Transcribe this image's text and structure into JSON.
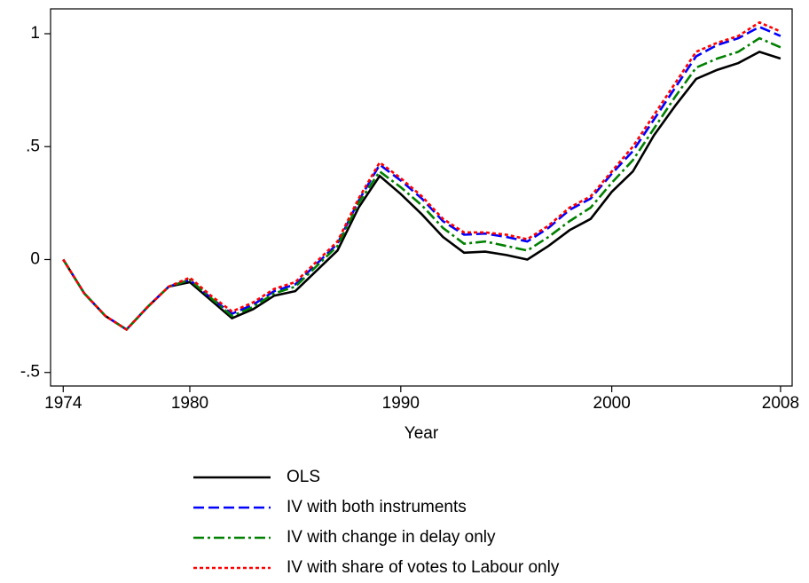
{
  "chart_data": {
    "type": "line",
    "x_label": "Year",
    "x": [
      1974,
      1975,
      1976,
      1977,
      1978,
      1979,
      1980,
      1981,
      1982,
      1983,
      1984,
      1985,
      1986,
      1987,
      1988,
      1989,
      1990,
      1991,
      1992,
      1993,
      1994,
      1995,
      1996,
      1997,
      1998,
      1999,
      2000,
      2001,
      2002,
      2003,
      2004,
      2005,
      2006,
      2007,
      2008
    ],
    "xlim": [
      1973.4,
      2008.55
    ],
    "xticks": [
      1974,
      1980,
      1990,
      2000,
      2008
    ],
    "ylim": [
      -0.56,
      1.11
    ],
    "yticks": [
      {
        "value": -0.5,
        "label": "-.5"
      },
      0,
      {
        "value": 0.5,
        "label": ".5"
      },
      1
    ],
    "grid": false,
    "legend_position": "bottom",
    "series": [
      {
        "name": "OLS",
        "color": "#000000",
        "dash": "solid",
        "values": [
          0,
          -0.15,
          -0.25,
          -0.31,
          -0.21,
          -0.12,
          -0.1,
          -0.18,
          -0.26,
          -0.22,
          -0.16,
          -0.14,
          -0.05,
          0.04,
          0.23,
          0.37,
          0.29,
          0.2,
          0.1,
          0.03,
          0.035,
          0.02,
          0.0,
          0.06,
          0.13,
          0.18,
          0.3,
          0.39,
          0.55,
          0.68,
          0.8,
          0.84,
          0.87,
          0.92,
          0.89
        ]
      },
      {
        "name": "IV with both instruments",
        "color": "#0000ff",
        "dash": "dashed",
        "values": [
          0,
          -0.15,
          -0.25,
          -0.31,
          -0.21,
          -0.12,
          -0.09,
          -0.17,
          -0.24,
          -0.2,
          -0.14,
          -0.11,
          -0.02,
          0.07,
          0.26,
          0.42,
          0.35,
          0.27,
          0.17,
          0.11,
          0.115,
          0.1,
          0.08,
          0.14,
          0.22,
          0.27,
          0.38,
          0.48,
          0.62,
          0.76,
          0.9,
          0.95,
          0.98,
          1.03,
          0.99
        ]
      },
      {
        "name": "IV with change in delay only",
        "color": "#008000",
        "dash": "dashdot",
        "values": [
          0,
          -0.15,
          -0.25,
          -0.31,
          -0.21,
          -0.12,
          -0.09,
          -0.17,
          -0.25,
          -0.21,
          -0.15,
          -0.12,
          -0.03,
          0.06,
          0.25,
          0.39,
          0.32,
          0.24,
          0.14,
          0.07,
          0.08,
          0.06,
          0.04,
          0.1,
          0.17,
          0.23,
          0.34,
          0.44,
          0.58,
          0.72,
          0.85,
          0.89,
          0.92,
          0.98,
          0.94
        ]
      },
      {
        "name": "IV with share of votes to Labour only",
        "color": "#ff0000",
        "dash": "dotted",
        "values": [
          0,
          -0.15,
          -0.25,
          -0.31,
          -0.21,
          -0.12,
          -0.08,
          -0.16,
          -0.23,
          -0.19,
          -0.13,
          -0.1,
          -0.01,
          0.08,
          0.27,
          0.43,
          0.36,
          0.28,
          0.18,
          0.12,
          0.12,
          0.11,
          0.09,
          0.15,
          0.23,
          0.28,
          0.39,
          0.5,
          0.64,
          0.78,
          0.92,
          0.96,
          0.99,
          1.05,
          1.01
        ]
      }
    ]
  }
}
